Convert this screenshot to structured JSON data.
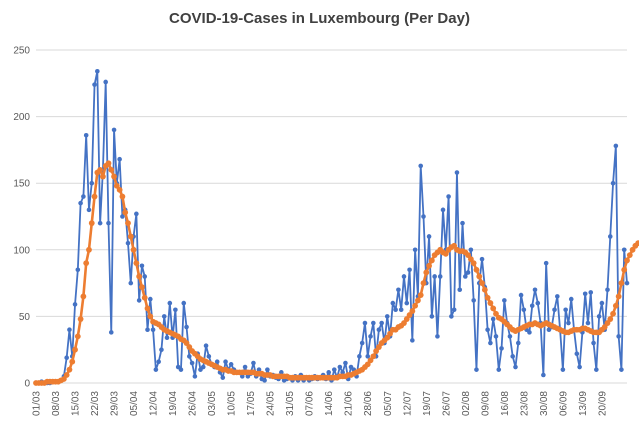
{
  "chart_data": {
    "type": "line",
    "title": "COVID-19-Cases in Luxembourg (Per Day)",
    "xlabel": "",
    "ylabel": "",
    "ylim": [
      0,
      250
    ],
    "yticks": [
      0,
      50,
      100,
      150,
      200,
      250
    ],
    "grid": true,
    "legend": "none",
    "start_date": "01/03",
    "x_tick_labels": [
      "01/03",
      "08/03",
      "15/03",
      "22/03",
      "29/03",
      "05/04",
      "12/04",
      "19/04",
      "26/04",
      "03/05",
      "10/05",
      "17/05",
      "24/05",
      "31/05",
      "07/06",
      "14/06",
      "21/06",
      "28/06",
      "05/07",
      "12/07",
      "19/07",
      "26/07",
      "02/08",
      "09/08",
      "16/08",
      "23/08",
      "30/08",
      "06/09",
      "13/09",
      "20/09"
    ],
    "series": [
      {
        "color": "#4472c4",
        "values": [
          0,
          0,
          1,
          0,
          0,
          0,
          1,
          1,
          1,
          2,
          5,
          19,
          40,
          20,
          59,
          85,
          135,
          140,
          186,
          130,
          150,
          224,
          234,
          120,
          160,
          226,
          120,
          38,
          190,
          150,
          168,
          125,
          130,
          105,
          75,
          110,
          127,
          62,
          88,
          80,
          40,
          63,
          40,
          10,
          16,
          25,
          50,
          34,
          60,
          34,
          55,
          12,
          10,
          60,
          42,
          20,
          15,
          5,
          22,
          10,
          12,
          28,
          20,
          14,
          12,
          16,
          8,
          4,
          16,
          10,
          14,
          10,
          8,
          8,
          5,
          12,
          5,
          7,
          15,
          5,
          10,
          3,
          2,
          10,
          5,
          6,
          4,
          3,
          8,
          2,
          3,
          4,
          2,
          5,
          2,
          6,
          2,
          4,
          2,
          3,
          5,
          3,
          4,
          6,
          3,
          8,
          2,
          10,
          4,
          12,
          8,
          15,
          3,
          12,
          10,
          5,
          20,
          30,
          45,
          20,
          35,
          45,
          20,
          40,
          45,
          30,
          50,
          35,
          60,
          55,
          70,
          55,
          80,
          60,
          85,
          32,
          100,
          65,
          163,
          125,
          75,
          110,
          50,
          80,
          35,
          80,
          130,
          100,
          140,
          50,
          55,
          158,
          70,
          120,
          80,
          83,
          100,
          62,
          10,
          75,
          93,
          72,
          40,
          30,
          48,
          35,
          10,
          26,
          62,
          45,
          35,
          20,
          12,
          30,
          66,
          55,
          40,
          38,
          58,
          70,
          60,
          45,
          6,
          90,
          40,
          42,
          55,
          65,
          40,
          10,
          55,
          45,
          63,
          40,
          22,
          12,
          38,
          67,
          45,
          68,
          30,
          10,
          50,
          60,
          40,
          70,
          110,
          150,
          178,
          35,
          10,
          100,
          75
        ]
      },
      {
        "color": "#ed7d31",
        "values": [
          0,
          0,
          0,
          0,
          1,
          1,
          1,
          1,
          1,
          2,
          3,
          6,
          10,
          16,
          25,
          35,
          48,
          65,
          90,
          100,
          120,
          140,
          158,
          160,
          155,
          163,
          165,
          160,
          155,
          148,
          145,
          140,
          128,
          120,
          110,
          100,
          90,
          80,
          72,
          64,
          56,
          50,
          46,
          45,
          44,
          42,
          40,
          39,
          38,
          37,
          36,
          35,
          33,
          32,
          30,
          27,
          24,
          22,
          20,
          18,
          17,
          16,
          15,
          14,
          13,
          12,
          11,
          10,
          10,
          9,
          9,
          8,
          8,
          8,
          8,
          8,
          8,
          8,
          8,
          7,
          7,
          7,
          6,
          6,
          6,
          5,
          5,
          5,
          5,
          5,
          5,
          4,
          4,
          4,
          4,
          4,
          4,
          4,
          4,
          4,
          4,
          4,
          4,
          4,
          4,
          4,
          4,
          4,
          4,
          5,
          5,
          5,
          6,
          6,
          7,
          8,
          9,
          10,
          12,
          14,
          17,
          20,
          24,
          27,
          30,
          32,
          34,
          37,
          40,
          40,
          42,
          43,
          45,
          48,
          51,
          54,
          58,
          62,
          66,
          75,
          83,
          88,
          92,
          96,
          98,
          100,
          98,
          97,
          100,
          102,
          103,
          100,
          99,
          99,
          98,
          96,
          93,
          90,
          85,
          80,
          75,
          70,
          64,
          60,
          56,
          52,
          49,
          48,
          46,
          44,
          42,
          40,
          39,
          40,
          41,
          42,
          43,
          44,
          44,
          45,
          44,
          43,
          44,
          45,
          44,
          43,
          42,
          41,
          40,
          39,
          38,
          38,
          39,
          40,
          40,
          40,
          41,
          41,
          40,
          39,
          38,
          38,
          38,
          40,
          42,
          45,
          48,
          52,
          58,
          65,
          75,
          85,
          92,
          96,
          100,
          103,
          105
        ]
      }
    ]
  }
}
